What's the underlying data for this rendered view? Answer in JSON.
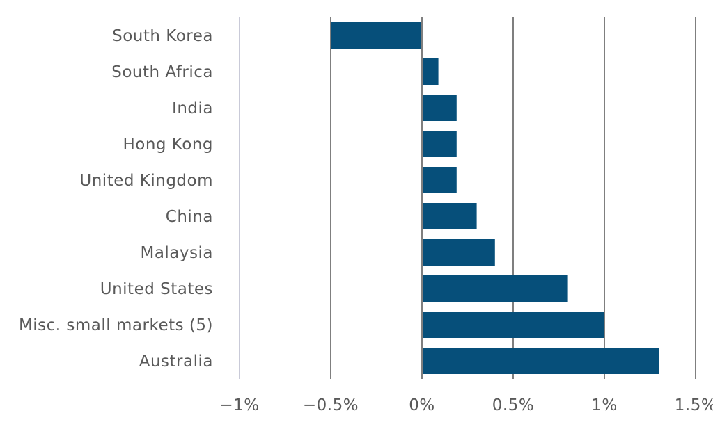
{
  "chart_data": {
    "type": "bar",
    "orientation": "horizontal",
    "categories": [
      "South Korea",
      "South Africa",
      "India",
      "Hong Kong",
      "United Kingdom",
      "China",
      "Malaysia",
      "United States",
      "Misc. small markets (5)",
      "Australia"
    ],
    "values": [
      -0.5,
      0.09,
      0.19,
      0.19,
      0.19,
      0.3,
      0.4,
      0.8,
      1.0,
      1.3
    ],
    "xlim": [
      -1,
      1.5
    ],
    "xticks": [
      -1,
      -0.5,
      0,
      0.5,
      1,
      1.5
    ],
    "xtick_labels": [
      "−1%",
      "−0.5%",
      "0%",
      "0.5%",
      "1%",
      "1.5%"
    ],
    "bar_color": "#064f7a",
    "grid": true,
    "title": "",
    "xlabel": "",
    "ylabel": ""
  }
}
